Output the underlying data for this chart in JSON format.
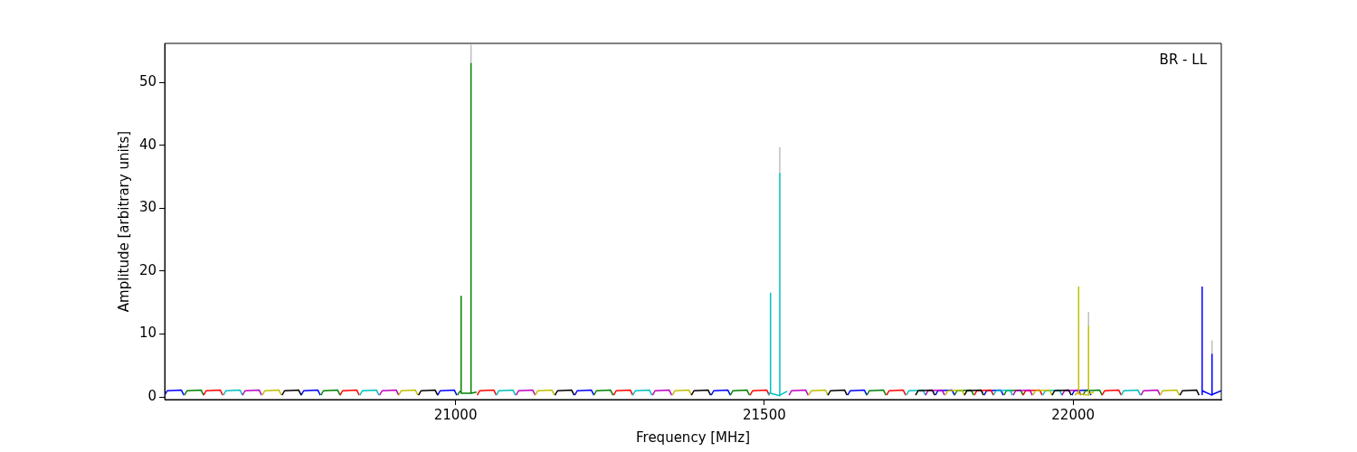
{
  "chart_data": {
    "type": "line",
    "xlabel": "Frequency [MHz]",
    "ylabel": "Amplitude [arbitrary units]",
    "annotations": [
      "BR - LL"
    ],
    "xlim": [
      20529,
      22240
    ],
    "ylim": [
      -0.4,
      56.2
    ],
    "xticks": [
      21000,
      21500,
      22000
    ],
    "yticks": [
      0,
      10,
      20,
      30,
      40,
      50
    ],
    "series": [
      {
        "color": "#bfbfbf",
        "x": [
          21025,
          21025,
          null,
          21525,
          21525,
          null,
          22025,
          22025,
          null,
          22225,
          22225
        ],
        "values": [
          53,
          56,
          null,
          35.5,
          39.7,
          null,
          11.2,
          13.5,
          null,
          6.8,
          9
        ]
      },
      {
        "color": "#0000ff",
        "x": [
          20529,
          20533,
          20556,
          20560,
          null,
          20750,
          20754,
          20777,
          20781,
          null,
          20971,
          20975,
          20998,
          21002,
          null,
          21193,
          21197,
          21220,
          21224,
          null,
          21414,
          21418,
          21441,
          21445,
          null,
          21635,
          21639,
          21662,
          21666,
          null,
          21777,
          21781,
          21804,
          21808,
          null,
          21856,
          21860,
          21883,
          21887,
          null,
          21998,
          22002,
          22025,
          22029,
          null,
          22208,
          22209,
          22209,
          22225,
          22225,
          22225,
          22240
        ],
        "values": [
          0.3,
          1.0,
          1.1,
          0.3,
          null,
          0.3,
          1.0,
          1.1,
          0.3,
          null,
          0.3,
          1.0,
          1.1,
          0.3,
          null,
          0.3,
          1.0,
          1.1,
          0.3,
          null,
          0.3,
          1.0,
          1.1,
          0.3,
          null,
          0.3,
          1.0,
          1.1,
          0.3,
          null,
          0.3,
          1.0,
          1.1,
          0.3,
          null,
          0.3,
          1.0,
          1.1,
          0.3,
          null,
          0.3,
          1.0,
          1.1,
          0.3,
          null,
          0.4,
          17.5,
          1.0,
          0.3,
          6.8,
          0.4,
          1.0
        ]
      },
      {
        "color": "#008000",
        "x": [
          20561,
          20565,
          20588,
          20592,
          null,
          20782,
          20786,
          20809,
          20813,
          null,
          21003,
          21007,
          21009,
          21009,
          21009,
          21025,
          21025,
          21025,
          21034,
          null,
          21224,
          21228,
          21251,
          21255,
          null,
          21445,
          21449,
          21472,
          21476,
          null,
          21666,
          21670,
          21693,
          21697,
          null,
          21808,
          21812,
          21835,
          21839,
          null,
          21888,
          21892,
          21915,
          21919,
          null,
          22016,
          22020,
          22043,
          22047
        ],
        "values": [
          0.3,
          1.0,
          1.1,
          0.3,
          null,
          0.3,
          1.0,
          1.1,
          0.3,
          null,
          0.3,
          0.9,
          0.9,
          16,
          0.6,
          0.6,
          53,
          0.6,
          0.8,
          null,
          0.3,
          1.0,
          1.1,
          0.3,
          null,
          0.3,
          1.0,
          1.1,
          0.3,
          null,
          0.3,
          1.0,
          1.1,
          0.3,
          null,
          0.3,
          1.0,
          1.1,
          0.3,
          null,
          0.3,
          1.0,
          1.1,
          0.3,
          null,
          0.3,
          1.0,
          1.1,
          0.3
        ]
      },
      {
        "color": "#ff0000",
        "x": [
          20592,
          20596,
          20619,
          20623,
          null,
          20813,
          20817,
          20840,
          20844,
          null,
          21035,
          21039,
          21062,
          21066,
          null,
          21256,
          21260,
          21283,
          21287,
          null,
          21477,
          21481,
          21504,
          21508,
          null,
          21698,
          21702,
          21725,
          21729,
          null,
          21840,
          21844,
          21867,
          21871,
          null,
          21919,
          21923,
          21946,
          21950,
          null,
          22047,
          22051,
          22074,
          22078
        ],
        "values": [
          0.3,
          1.0,
          1.1,
          0.3,
          null,
          0.3,
          1.0,
          1.1,
          0.3,
          null,
          0.3,
          1.0,
          1.1,
          0.3,
          null,
          0.3,
          1.0,
          1.1,
          0.3,
          null,
          0.3,
          1.0,
          1.1,
          0.3,
          null,
          0.3,
          1.0,
          1.1,
          0.3,
          null,
          0.3,
          1.0,
          1.1,
          0.3,
          null,
          0.3,
          1.0,
          1.1,
          0.3,
          null,
          0.3,
          1.0,
          1.1,
          0.3
        ]
      },
      {
        "color": "#00bfbf",
        "x": [
          20624,
          20628,
          20651,
          20655,
          null,
          20845,
          20849,
          20872,
          20876,
          null,
          21066,
          21070,
          21093,
          21097,
          null,
          21287,
          21291,
          21314,
          21318,
          null,
          21506,
          21510,
          21510,
          21510,
          21525,
          21525,
          21525,
          21537,
          null,
          21730,
          21734,
          21757,
          21761,
          null,
          21871,
          21875,
          21898,
          21902,
          null,
          21951,
          21955,
          21978,
          21982,
          null,
          22078,
          22082,
          22105,
          22109
        ],
        "values": [
          0.3,
          1.0,
          1.1,
          0.3,
          null,
          0.3,
          1.0,
          1.1,
          0.3,
          null,
          0.3,
          1.0,
          1.1,
          0.3,
          null,
          0.3,
          1.0,
          1.1,
          0.3,
          null,
          0.3,
          0.8,
          16.5,
          0.6,
          0.2,
          35.5,
          0.3,
          0.9,
          null,
          0.3,
          1.0,
          1.1,
          0.3,
          null,
          0.3,
          1.0,
          1.1,
          0.3,
          null,
          0.3,
          1.0,
          1.1,
          0.3,
          null,
          0.3,
          1.0,
          1.1,
          0.3
        ]
      },
      {
        "color": "#bf00bf",
        "x": [
          20655,
          20659,
          20682,
          20686,
          null,
          20877,
          20881,
          20904,
          20908,
          null,
          21098,
          21102,
          21125,
          21129,
          null,
          21319,
          21323,
          21346,
          21350,
          null,
          21540,
          21544,
          21567,
          21571,
          null,
          21761,
          21765,
          21788,
          21792,
          null,
          21903,
          21907,
          21930,
          21934,
          null,
          21982,
          21986,
          22009,
          22013,
          null,
          22110,
          22114,
          22137,
          22141
        ],
        "values": [
          0.3,
          1.0,
          1.1,
          0.3,
          null,
          0.3,
          1.0,
          1.1,
          0.3,
          null,
          0.3,
          1.0,
          1.1,
          0.3,
          null,
          0.3,
          1.0,
          1.1,
          0.3,
          null,
          0.3,
          1.0,
          1.1,
          0.3,
          null,
          0.3,
          1.0,
          1.1,
          0.3,
          null,
          0.3,
          1.0,
          1.1,
          0.3,
          null,
          0.3,
          1.0,
          1.1,
          0.3,
          null,
          0.3,
          1.0,
          1.1,
          0.3
        ]
      },
      {
        "color": "#bfbf00",
        "x": [
          20687,
          20691,
          20714,
          20718,
          null,
          20908,
          20912,
          20935,
          20939,
          null,
          21129,
          21133,
          21156,
          21160,
          null,
          21351,
          21355,
          21378,
          21382,
          null,
          21572,
          21576,
          21599,
          21603,
          null,
          21793,
          21797,
          21820,
          21824,
          null,
          21935,
          21939,
          21962,
          21966,
          null,
          22003,
          22009,
          22009,
          22009,
          22025,
          22025,
          22025,
          22034,
          null,
          22141,
          22145,
          22168,
          22172
        ],
        "values": [
          0.3,
          1.0,
          1.1,
          0.3,
          null,
          0.3,
          1.0,
          1.1,
          0.3,
          null,
          0.3,
          1.0,
          1.1,
          0.3,
          null,
          0.3,
          1.0,
          1.1,
          0.3,
          null,
          0.3,
          1.0,
          1.1,
          0.3,
          null,
          0.3,
          1.0,
          1.1,
          0.3,
          null,
          0.3,
          1.0,
          1.1,
          0.3,
          null,
          0.3,
          0.9,
          17.5,
          0.5,
          0.3,
          11.2,
          0.5,
          0.8,
          null,
          0.3,
          1.0,
          1.1,
          0.3
        ]
      },
      {
        "color": "#000000",
        "x": [
          20719,
          20723,
          20746,
          20750,
          null,
          20940,
          20944,
          20967,
          20971,
          null,
          21161,
          21165,
          21188,
          21192,
          null,
          21382,
          21386,
          21409,
          21413,
          null,
          21603,
          21607,
          21630,
          21634,
          null,
          21745,
          21749,
          21772,
          21776,
          null,
          21824,
          21828,
          21851,
          21855,
          null,
          21966,
          21970,
          21993,
          21997,
          null,
          22173,
          22177,
          22200,
          22204
        ],
        "values": [
          0.3,
          1.0,
          1.1,
          0.3,
          null,
          0.3,
          1.0,
          1.1,
          0.3,
          null,
          0.3,
          1.0,
          1.1,
          0.3,
          null,
          0.3,
          1.0,
          1.1,
          0.3,
          null,
          0.3,
          1.0,
          1.1,
          0.3,
          null,
          0.3,
          1.0,
          1.1,
          0.3,
          null,
          0.3,
          1.0,
          1.1,
          0.3,
          null,
          0.3,
          1.0,
          1.1,
          0.3,
          null,
          0.3,
          1.0,
          1.1,
          0.3
        ]
      }
    ]
  }
}
